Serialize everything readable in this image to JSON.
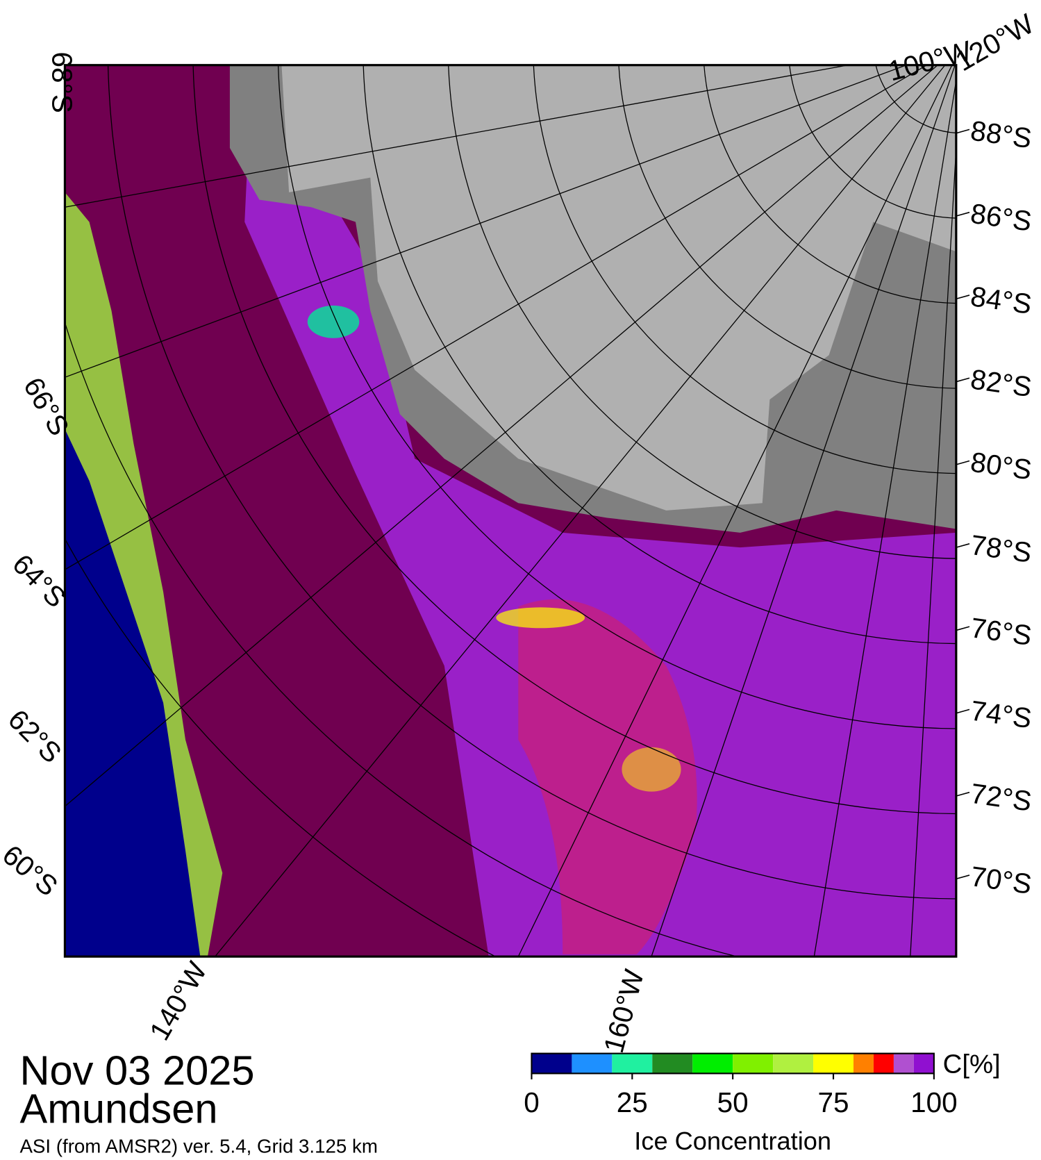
{
  "map": {
    "date": "Nov 03 2025",
    "region": "Amundsen",
    "source": "ASI (from AMSR2) ver. 5.4,  Grid 3.125 km",
    "right_lat_labels": [
      "88°S",
      "86°S",
      "84°S",
      "82°S",
      "80°S",
      "78°S",
      "76°S",
      "74°S",
      "72°S",
      "70°S"
    ],
    "left_lat_labels": [
      "68°S",
      "66°S",
      "64°S",
      "62°S",
      "60°S"
    ],
    "top_lon_labels": [
      "100°W",
      "120°W"
    ],
    "bottom_lon_labels": [
      "140°W",
      "160°W"
    ]
  },
  "colorbar": {
    "unit": "C[%]",
    "label": "Ice Concentration",
    "lim": [
      0,
      100
    ],
    "ticks": [
      0,
      25,
      50,
      75,
      100
    ],
    "bounds": [
      0,
      10,
      20,
      30,
      40,
      50,
      60,
      70,
      80,
      85,
      90,
      95,
      100
    ],
    "colors": [
      "#00008c",
      "#1e90ff",
      "#20f0a0",
      "#228b22",
      "#00ee00",
      "#80f000",
      "#b0f040",
      "#ffff00",
      "#ff8000",
      "#ff0000",
      "#b050d0",
      "#9010d0"
    ]
  }
}
